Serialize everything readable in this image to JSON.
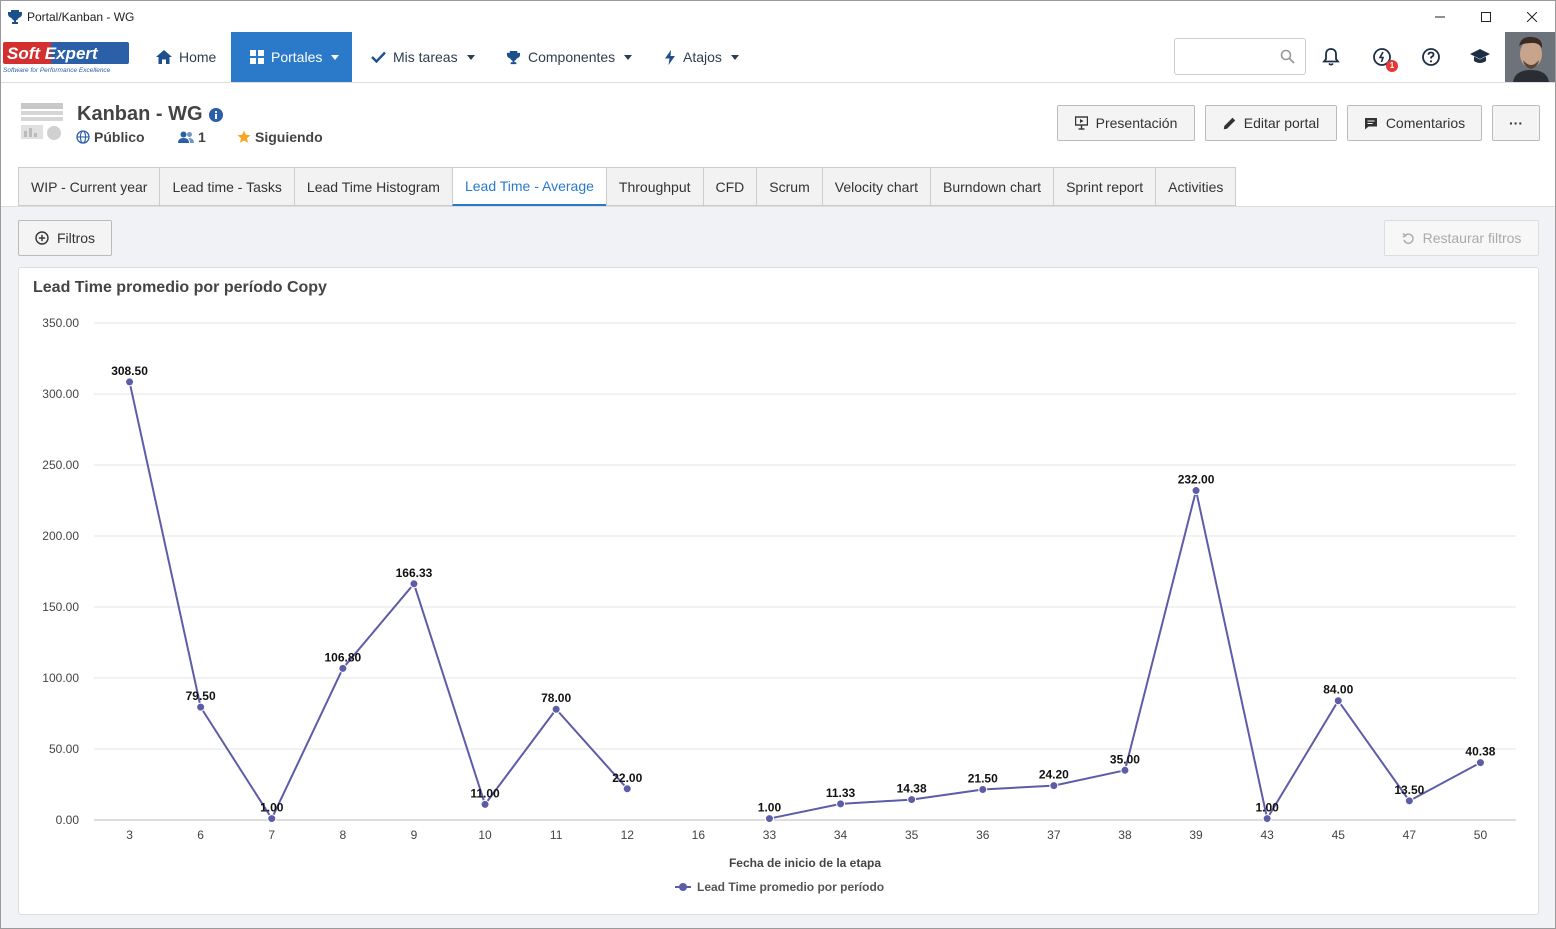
{
  "window": {
    "title": "Portal/Kanban - WG"
  },
  "brand": {
    "logo_text": "Soft Expert",
    "tagline": "Software for Performance Excellence",
    "accent": "#2b7ac9",
    "logo_red": "#d32f2f"
  },
  "nav": {
    "home": "Home",
    "portales": "Portales",
    "mis_tareas": "Mis tareas",
    "componentes": "Componentes",
    "atajos": "Atajos"
  },
  "search": {
    "placeholder": ""
  },
  "notifications": {
    "badge_count": "1"
  },
  "portal": {
    "title": "Kanban - WG",
    "visibility": "Público",
    "members": "1",
    "following": "Siguiendo"
  },
  "header_buttons": {
    "presentation": "Presentación",
    "edit": "Editar portal",
    "comments": "Comentarios",
    "more": "···"
  },
  "tabs": [
    {
      "label": "WIP - Current year"
    },
    {
      "label": "Lead time - Tasks"
    },
    {
      "label": "Lead Time Histogram"
    },
    {
      "label": "Lead Time - Average",
      "active": true
    },
    {
      "label": "Throughput"
    },
    {
      "label": "CFD"
    },
    {
      "label": "Scrum"
    },
    {
      "label": "Velocity chart"
    },
    {
      "label": "Burndown chart"
    },
    {
      "label": "Sprint report"
    },
    {
      "label": "Activities"
    }
  ],
  "filters": {
    "label": "Filtros",
    "restore": "Restaurar filtros"
  },
  "card": {
    "title": "Lead Time promedio por período Copy"
  },
  "chart_data": {
    "type": "line",
    "title": "Lead Time promedio por período Copy",
    "xlabel": "Fecha de inicio de la etapa",
    "ylabel": "",
    "ylim": [
      0,
      350
    ],
    "yticks": [
      "0.00",
      "50.00",
      "100.00",
      "150.00",
      "200.00",
      "250.00",
      "300.00",
      "350.00"
    ],
    "categories": [
      "3",
      "6",
      "7",
      "8",
      "9",
      "10",
      "11",
      "12",
      "16",
      "33",
      "34",
      "35",
      "36",
      "37",
      "38",
      "39",
      "43",
      "45",
      "47",
      "50"
    ],
    "grid": true,
    "legend_position": "bottom",
    "series": [
      {
        "name": "Lead Time promedio por período",
        "color": "#5c5ca8",
        "values": [
          308.5,
          79.5,
          1.0,
          106.8,
          166.33,
          11.0,
          78.0,
          22.0,
          null,
          1.0,
          11.33,
          14.38,
          21.5,
          24.2,
          35.0,
          232.0,
          1.0,
          84.0,
          13.5,
          40.38
        ],
        "labels": [
          "308.50",
          "79.50",
          "1.00",
          "106.80",
          "166.33",
          "11.00",
          "78.00",
          "22.00",
          "",
          "1.00",
          "11.33",
          "14.38",
          "21.50",
          "24.20",
          "35.00",
          "232.00",
          "1.00",
          "84.00",
          "13.50",
          "40.38"
        ]
      }
    ]
  }
}
